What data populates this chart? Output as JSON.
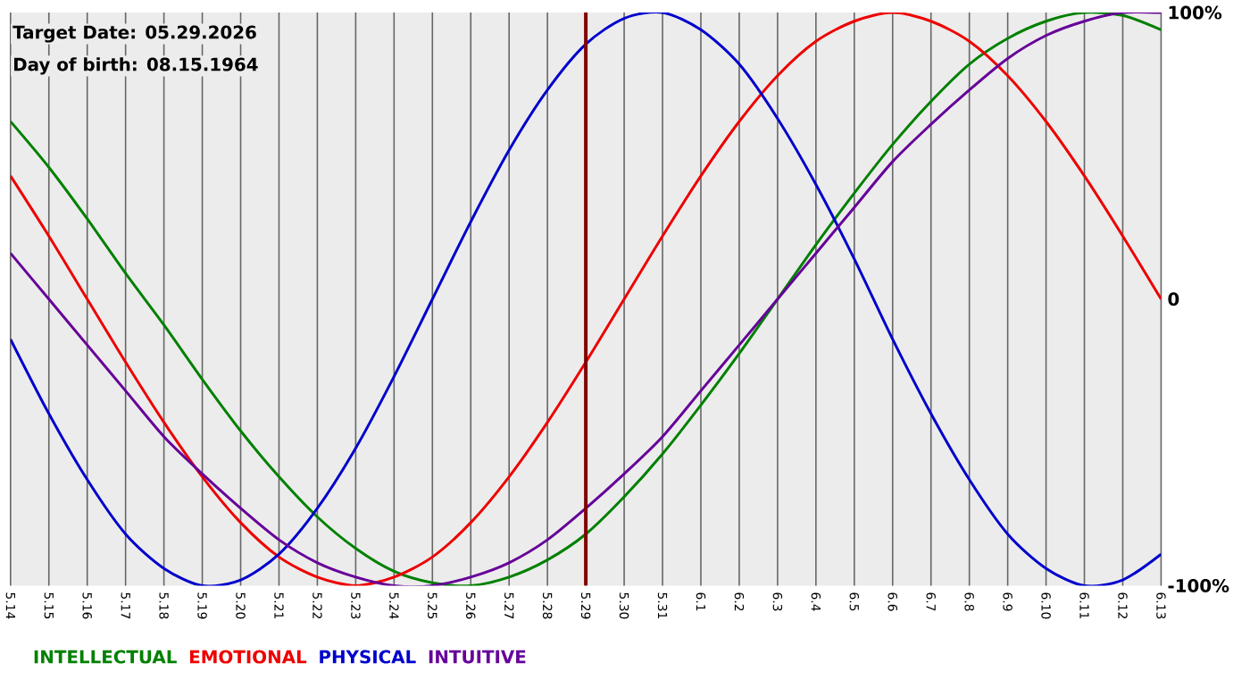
{
  "chart_data": {
    "type": "line",
    "categories": [
      "5.14",
      "5.15",
      "5.16",
      "5.17",
      "5.18",
      "5.19",
      "5.20",
      "5.21",
      "5.22",
      "5.23",
      "5.24",
      "5.25",
      "5.26",
      "5.27",
      "5.28",
      "5.29",
      "5.30",
      "5.31",
      "6.1",
      "6.2",
      "6.3",
      "6.4",
      "6.5",
      "6.6",
      "6.7",
      "6.8",
      "6.9",
      "6.10",
      "6.11",
      "6.12",
      "6.13"
    ],
    "series": [
      {
        "name": "INTELLECTUAL",
        "color": "#008000",
        "values": [
          62,
          46,
          28,
          9,
          -9,
          -28,
          -46,
          -62,
          -76,
          -87,
          -95,
          -99,
          -100,
          -97,
          -91,
          -82,
          -69,
          -54,
          -37,
          -19,
          0,
          19,
          37,
          54,
          69,
          82,
          91,
          97,
          100,
          99,
          94
        ]
      },
      {
        "name": "EMOTIONAL",
        "color": "#ee0000",
        "values": [
          43,
          22,
          0,
          -22,
          -43,
          -62,
          -78,
          -90,
          -97,
          -100,
          -97,
          -90,
          -78,
          -62,
          -43,
          -22,
          0,
          22,
          43,
          62,
          78,
          90,
          97,
          100,
          97,
          90,
          78,
          62,
          43,
          22,
          0
        ]
      },
      {
        "name": "PHYSICAL",
        "color": "#0000cc",
        "values": [
          -14,
          -40,
          -63,
          -82,
          -94,
          -100,
          -98,
          -89,
          -73,
          -52,
          -27,
          0,
          27,
          52,
          73,
          89,
          98,
          100,
          94,
          82,
          63,
          40,
          14,
          -14,
          -40,
          -63,
          -82,
          -94,
          -100,
          -98,
          -89
        ]
      },
      {
        "name": "INTUITIVE",
        "color": "#660099",
        "values": [
          16,
          0,
          -16,
          -32,
          -48,
          -61,
          -73,
          -84,
          -92,
          -97,
          -100,
          -100,
          -97,
          -92,
          -84,
          -73,
          -61,
          -48,
          -32,
          -16,
          0,
          16,
          32,
          48,
          61,
          73,
          84,
          92,
          97,
          100,
          100
        ]
      }
    ],
    "ylim": [
      -100,
      100
    ],
    "yticks": [
      {
        "value": 100,
        "label": "100%"
      },
      {
        "value": 0,
        "label": "0"
      },
      {
        "value": -100,
        "label": "-100%"
      }
    ],
    "grid": "x",
    "legend": "bottom",
    "line_style": "solid",
    "ref_lines": [
      {
        "axis": "x",
        "value": "5.29",
        "color": "#800000"
      }
    ],
    "annotations": [
      "Target Date: 05.29.2026",
      "Day of birth: 08.15.1964"
    ]
  }
}
